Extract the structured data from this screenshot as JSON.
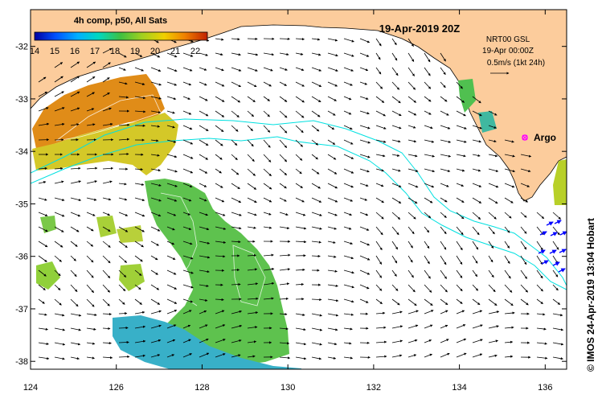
{
  "map": {
    "title": "19-Apr-2019 20Z",
    "legend_title": "4h comp, p50, All Sats",
    "colorbar": {
      "labels": [
        "14",
        "15",
        "16",
        "17",
        "18",
        "19",
        "20",
        "21",
        "22"
      ],
      "min": 14,
      "max": 22.6,
      "colors": [
        "#0000a0",
        "#0050ff",
        "#00b0ff",
        "#00d8c0",
        "#40c040",
        "#a0d020",
        "#f0d000",
        "#f08000",
        "#c02000"
      ]
    },
    "info": {
      "line1": "NRT00 GSL",
      "line2": "19-Apr 00:00Z",
      "line3": "0.5m/s (1kt 24h)"
    },
    "argo_label": "Argo",
    "credit": "© IMOS 24-Apr-2019 13:04 Hobart",
    "x_ticks": [
      "124",
      "126",
      "128",
      "130",
      "132",
      "134",
      "136"
    ],
    "y_ticks": [
      "-32",
      "-33",
      "-34",
      "-35",
      "-36",
      "-37",
      "-38"
    ],
    "colors": {
      "land": "#fccc9c",
      "ocean": "#ffffff",
      "contour": "#00e0e0",
      "argo": "#ff00ff",
      "arrows": "#000000",
      "glider": "#0000ff"
    }
  }
}
